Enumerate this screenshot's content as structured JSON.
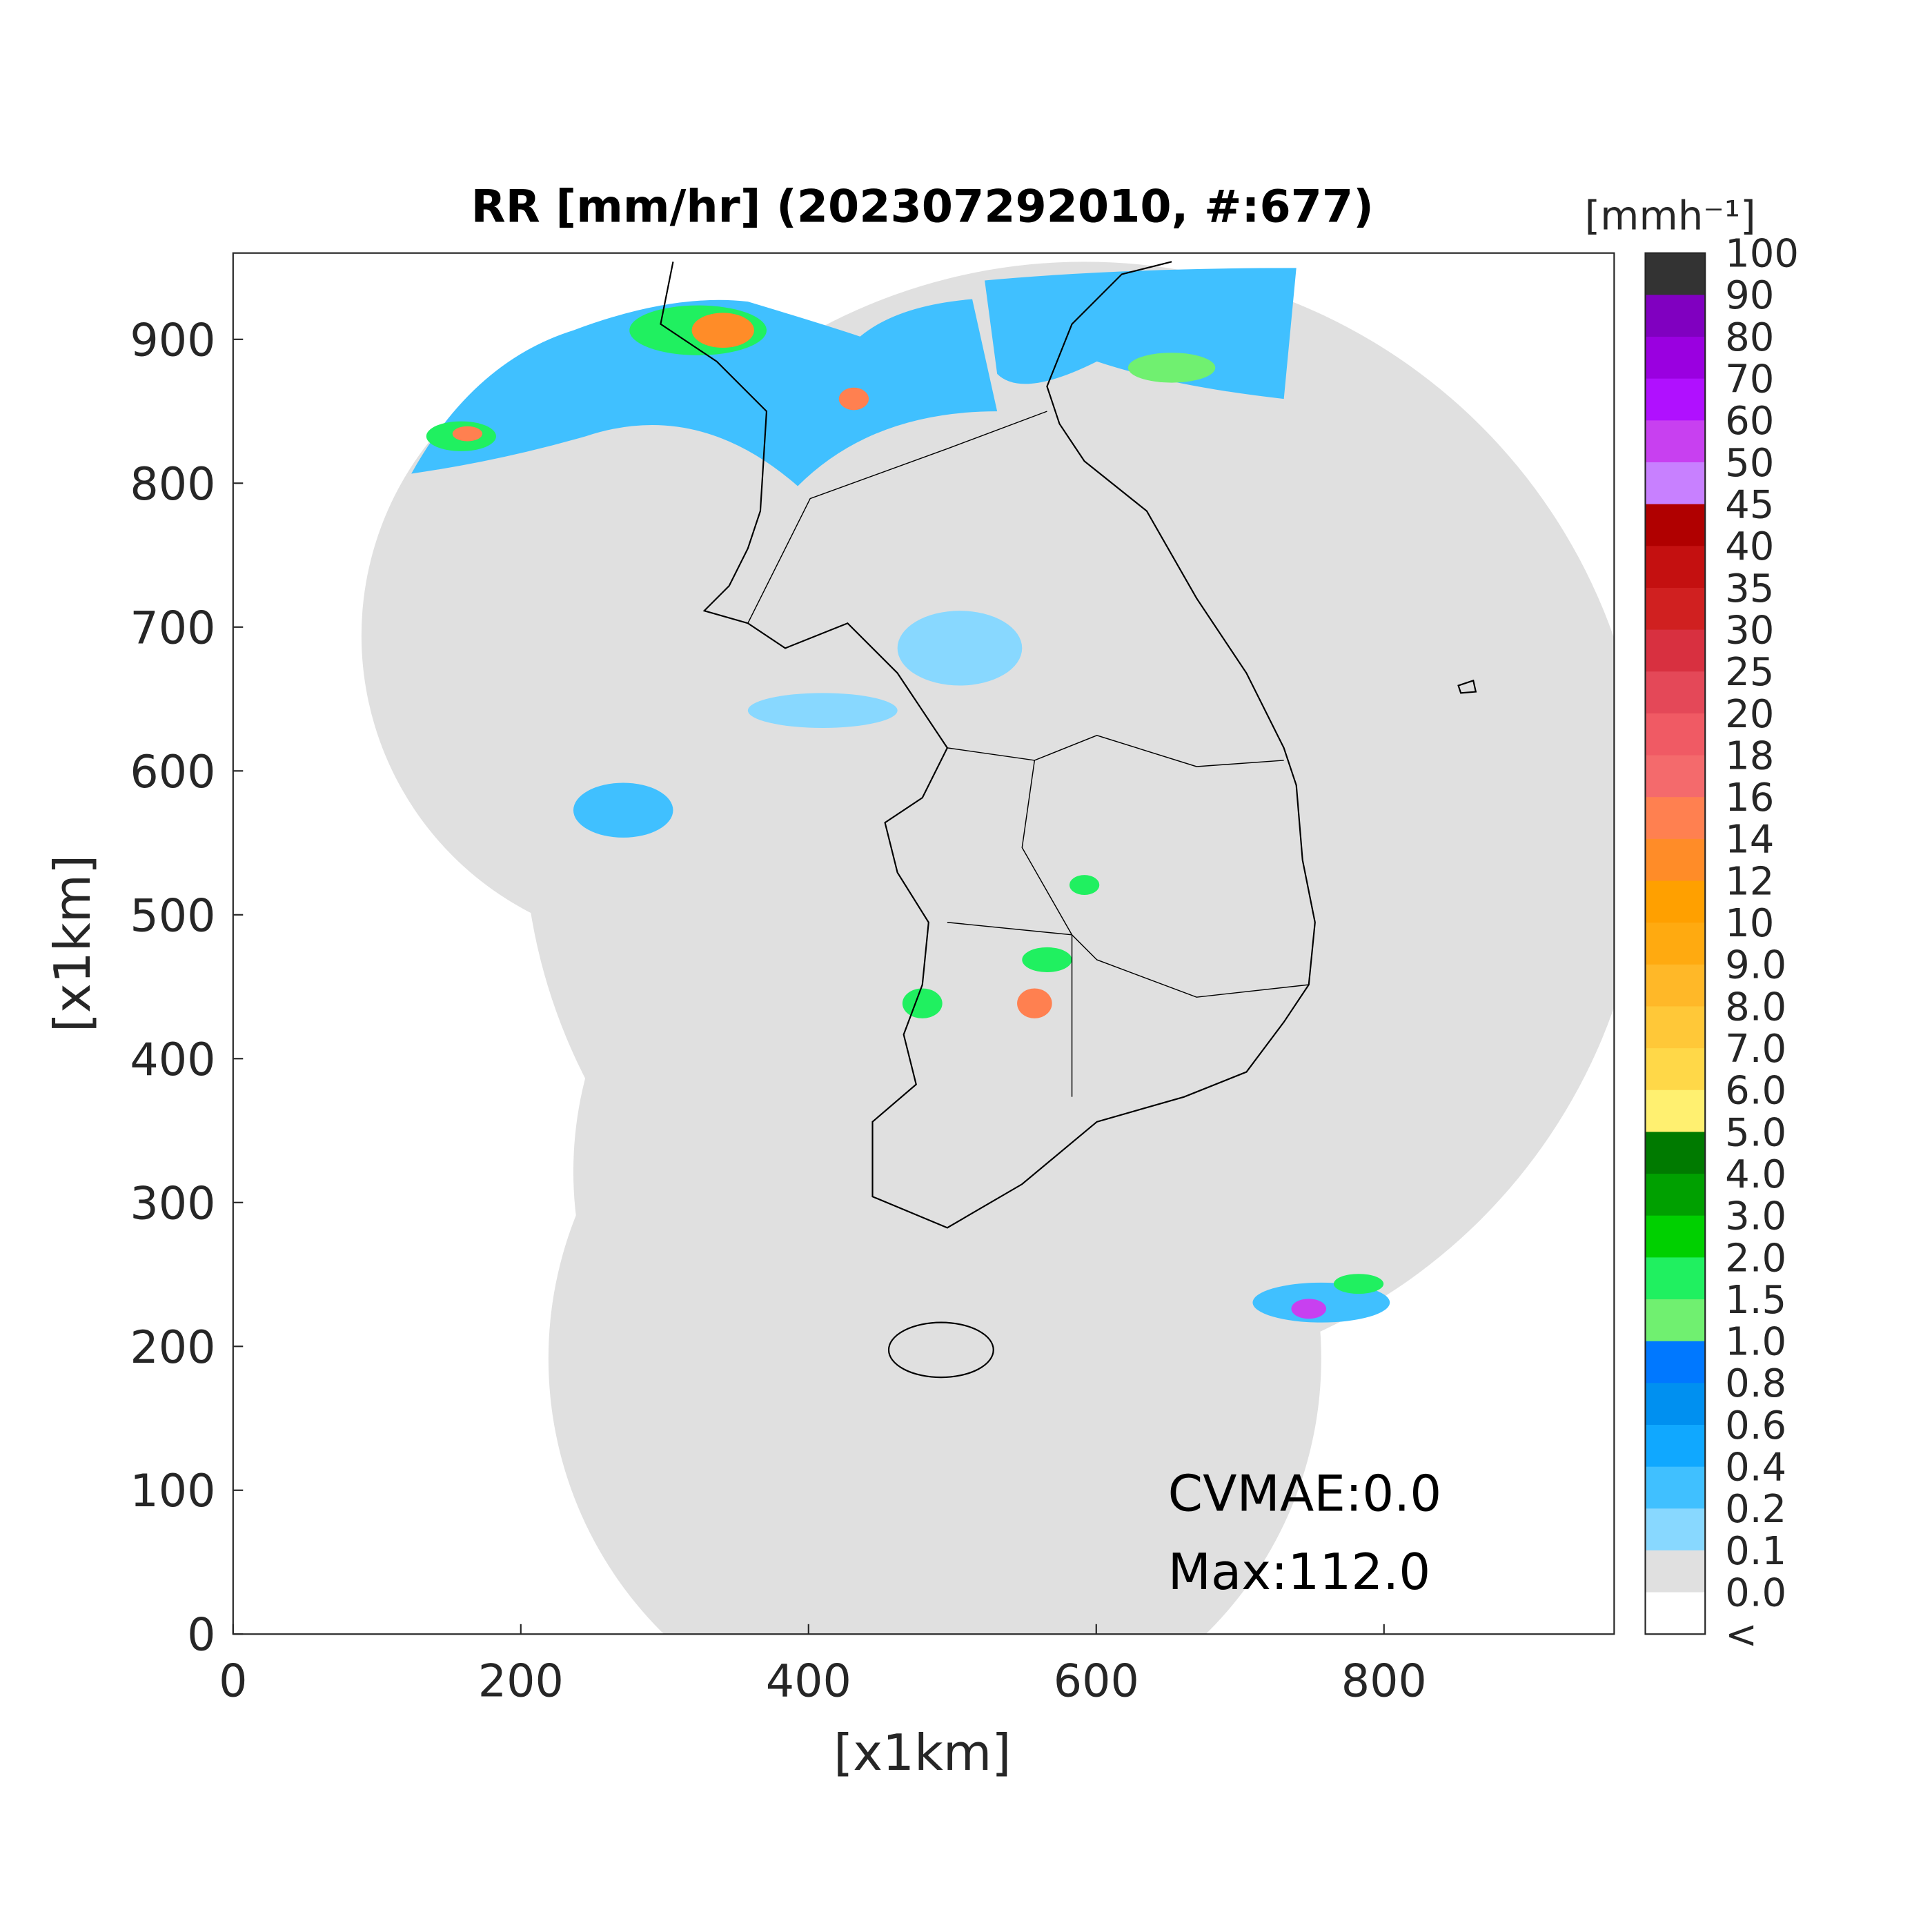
{
  "title": "RR [mm/hr] (202307292010, #:677)",
  "axes": {
    "xlabel": "[x1km]",
    "ylabel": "[x1km]",
    "xlim": [
      0,
      960
    ],
    "ylim": [
      0,
      960
    ],
    "xticks": [
      0,
      200,
      400,
      600,
      800
    ],
    "yticks": [
      0,
      100,
      200,
      300,
      400,
      500,
      600,
      700,
      800,
      900
    ]
  },
  "annotations": [
    "CVMAE:0.0",
    "Max:112.0"
  ],
  "colorbar": {
    "unit": "[mmh⁻¹]",
    "labels": [
      "100",
      "90",
      "80",
      "70",
      "60",
      "50",
      "45",
      "40",
      "35",
      "30",
      "25",
      "20",
      "18",
      "16",
      "14",
      "12",
      "10",
      "9.0",
      "8.0",
      "7.0",
      "6.0",
      "5.0",
      "4.0",
      "3.0",
      "2.0",
      "1.5",
      "1.0",
      "0.8",
      "0.6",
      "0.4",
      "0.2",
      "0.1",
      "0.0",
      "<"
    ],
    "colors": [
      "#333333",
      "#8000c0",
      "#9a00e0",
      "#b010ff",
      "#c840f0",
      "#c880ff",
      "#b00000",
      "#c41010",
      "#d02020",
      "#d83040",
      "#e44858",
      "#f05a64",
      "#f46a6c",
      "#ff8050",
      "#ff8c28",
      "#ffa000",
      "#ffaa10",
      "#ffb828",
      "#ffc838",
      "#ffd848",
      "#fff070",
      "#007a00",
      "#00a000",
      "#00d000",
      "#20f060",
      "#70f070",
      "#0078ff",
      "#0090f0",
      "#10a8ff",
      "#40c0ff",
      "#88d8ff",
      "#e0e0e0",
      "#ffffff"
    ]
  }
}
